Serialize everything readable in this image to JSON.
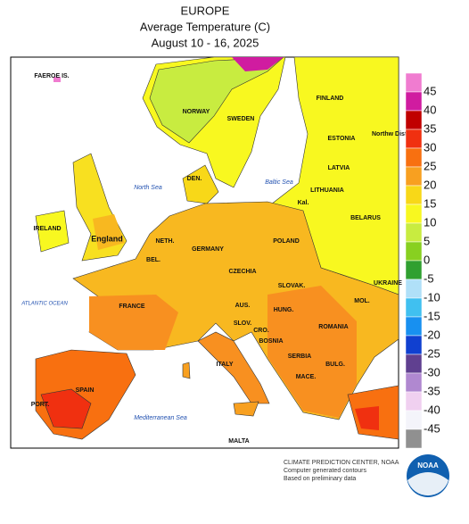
{
  "header": {
    "title": "EUROPE",
    "subtitle": "Average Temperature (C)",
    "dates": "August 10 - 16, 2025"
  },
  "labels": {
    "faeroe": "FAEROE IS.",
    "norway": "NORWAY",
    "sweden": "SWEDEN",
    "finland": "FINLAND",
    "estonia": "ESTONIA",
    "northwest": "Northw Distr",
    "latvia": "LATVIA",
    "lithuania": "LITHUANIA",
    "belarus": "BELARUS",
    "kal": "Kal.",
    "north_sea": "North Sea",
    "baltic_sea": "Baltic Sea",
    "denmark": "DEN.",
    "ireland": "IRELAND",
    "england": "England",
    "netherlands": "NETH.",
    "belgium": "BEL.",
    "germany": "GERMANY",
    "poland": "POLAND",
    "czechia": "CZECHIA",
    "slovakia": "SLOVAK.",
    "ukraine": "UKRAINE",
    "moldova": "MOL.",
    "france": "FRANCE",
    "austria": "AUS.",
    "hungary": "HUNG.",
    "romania": "ROMANIA",
    "slovenia": "SLOV.",
    "croatia": "CRO.",
    "bosnia": "BOSNIA",
    "serbia": "SERBIA",
    "bulgaria": "BULG.",
    "italy": "ITALY",
    "macedonia": "MACE.",
    "spain": "SPAIN",
    "portugal": "PORT.",
    "atlantic": "ATLANTIC OCEAN",
    "mediterranean": "Mediterranean Sea",
    "malta": "MALTA"
  },
  "legend": {
    "ticks": [
      45,
      40,
      35,
      30,
      25,
      20,
      15,
      10,
      5,
      0,
      -5,
      -10,
      -15,
      -20,
      -25,
      -30,
      -35,
      -40,
      -45
    ],
    "colors": [
      "#f07cd0",
      "#d01ca0",
      "#c00000",
      "#f03010",
      "#f87010",
      "#f8a020",
      "#f8d818",
      "#f8f820",
      "#c8ec40",
      "#88d020",
      "#30a030",
      "#b0e0f8",
      "#40c0f0",
      "#1890f0",
      "#1040d0",
      "#604090",
      "#b088d0",
      "#f0d0f0",
      "#f4f4fa",
      "#909090"
    ]
  },
  "footer": {
    "line1": "CLIMATE PREDICTION CENTER, NOAA",
    "line2": "Computer generated contours",
    "line3": "Based on preliminary data",
    "logo": "NOAA"
  }
}
